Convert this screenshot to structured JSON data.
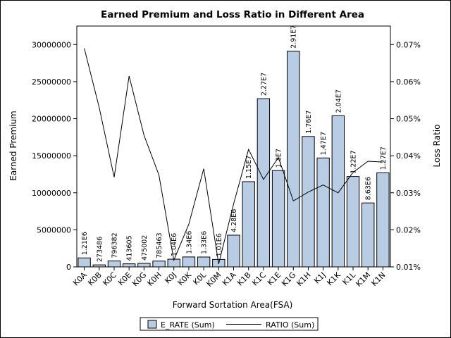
{
  "chart_data": {
    "type": "bar",
    "title": "Earned Premium and Loss Ratio in Different Area",
    "xlabel": "Forward Sortation Area(FSA)",
    "ylabel": "Earned Premium",
    "y2label": "Loss Ratio",
    "categories": [
      "K0A",
      "K0B",
      "K0C",
      "K0E",
      "K0G",
      "K0H",
      "K0J",
      "K0K",
      "K0L",
      "K0M",
      "K1A",
      "K1B",
      "K1C",
      "K1E",
      "K1G",
      "K1H",
      "K1J",
      "K1K",
      "K1L",
      "K1M",
      "K1N"
    ],
    "ylim": [
      0,
      32500000
    ],
    "y_ticks": [
      0,
      5000000,
      10000000,
      15000000,
      20000000,
      25000000,
      30000000
    ],
    "y_tick_labels": [
      "0",
      "5000000",
      "10000000",
      "15000000",
      "20000000",
      "25000000",
      "30000000"
    ],
    "y2lim": [
      0.0001,
      0.00075
    ],
    "y2_ticks": [
      0.0001,
      0.0002,
      0.0003,
      0.0004,
      0.0005,
      0.0006,
      0.0007
    ],
    "y2_tick_labels": [
      "0.01%",
      "0.02%",
      "0.03%",
      "0.04%",
      "0.05%",
      "0.06%",
      "0.07%"
    ],
    "series": [
      {
        "name": "E_RATE (Sum)",
        "kind": "bar",
        "color": "#b8cce4",
        "values": [
          1210000,
          273486,
          796382,
          413605,
          475002,
          785463,
          1040000,
          1340000,
          1330000,
          1010000,
          4280000,
          11500000,
          22700000,
          13000000,
          29100000,
          17600000,
          14700000,
          20400000,
          12200000,
          8630000,
          12700000
        ],
        "labels": [
          "1.21E6",
          "273486",
          "796382",
          "413605",
          "475002",
          "785463",
          "1.04E6",
          "1.34E6",
          "1.33E6",
          "1.01E6",
          "4.28E6",
          "1.15E7",
          "2.27E7",
          "1.3E7",
          "2.91E7",
          "1.76E7",
          "1.47E7",
          "2.04E7",
          "1.22E7",
          "8.63E6",
          "1.27E7"
        ]
      },
      {
        "name": "RATIO (Sum)",
        "kind": "line",
        "color": "#000000",
        "axis": "y2",
        "values": [
          0.00069,
          0.00053,
          0.000342,
          0.000615,
          0.000455,
          0.000348,
          0.000118,
          0.000215,
          0.000365,
          0.000108,
          0.00027,
          0.000417,
          0.000336,
          0.000395,
          0.000278,
          0.000302,
          0.000321,
          0.0003,
          0.000355,
          0.000385,
          0.000383
        ]
      }
    ],
    "legend_position": "bottom"
  },
  "legend": {
    "bar_label": "E_RATE (Sum)",
    "line_label": "RATIO (Sum)"
  }
}
